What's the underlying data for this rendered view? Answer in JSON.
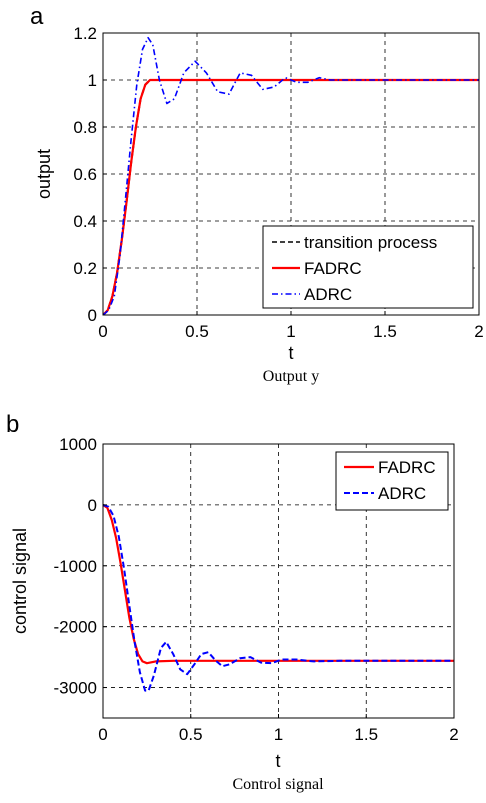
{
  "chart_data": [
    {
      "panel_letter": "a",
      "type": "line",
      "xlabel": "t",
      "ylabel": "output",
      "caption": "Output y",
      "xlim": [
        0,
        2
      ],
      "ylim": [
        0,
        1.2
      ],
      "xticks": [
        0,
        0.5,
        1,
        1.5,
        2
      ],
      "xtick_labels": [
        "0",
        "0.5",
        "1",
        "1.5",
        "2"
      ],
      "yticks": [
        0,
        0.2,
        0.4,
        0.6,
        0.8,
        1,
        1.2
      ],
      "ytick_labels": [
        "0",
        "0.2",
        "0.4",
        "0.6",
        "0.8",
        "1",
        "1.2"
      ],
      "grid": true,
      "legend_position": "bottom-right",
      "series": [
        {
          "name": "transition process",
          "color": "#000000",
          "style": "dashed",
          "x": [
            0,
            0.025,
            0.05,
            0.075,
            0.1,
            0.125,
            0.15,
            0.175,
            0.2,
            0.225,
            0.25,
            0.275,
            0.3,
            0.4,
            0.6,
            0.8,
            1.0,
            1.2,
            1.4,
            1.6,
            1.8,
            2.0
          ],
          "y": [
            0,
            0.02,
            0.08,
            0.18,
            0.32,
            0.48,
            0.65,
            0.8,
            0.92,
            0.98,
            1.0,
            1.0,
            1.0,
            1.0,
            1.0,
            1.0,
            1.0,
            1.0,
            1.0,
            1.0,
            1.0,
            1.0
          ]
        },
        {
          "name": "FADRC",
          "color": "#ff0000",
          "style": "solid",
          "x": [
            0,
            0.025,
            0.05,
            0.075,
            0.1,
            0.125,
            0.15,
            0.175,
            0.2,
            0.225,
            0.25,
            0.275,
            0.3,
            0.4,
            0.6,
            0.8,
            1.0,
            1.2,
            1.4,
            1.6,
            1.8,
            2.0
          ],
          "y": [
            0,
            0.02,
            0.08,
            0.18,
            0.32,
            0.48,
            0.65,
            0.8,
            0.92,
            0.98,
            1.0,
            1.0,
            1.0,
            1.0,
            1.0,
            1.0,
            1.0,
            1.0,
            1.0,
            1.0,
            1.0,
            1.0
          ]
        },
        {
          "name": "ADRC",
          "color": "#0000ff",
          "style": "dashdot",
          "x": [
            0,
            0.03,
            0.06,
            0.09,
            0.12,
            0.15,
            0.18,
            0.21,
            0.24,
            0.265,
            0.3,
            0.34,
            0.38,
            0.43,
            0.49,
            0.55,
            0.61,
            0.67,
            0.73,
            0.79,
            0.85,
            0.91,
            0.97,
            1.03,
            1.09,
            1.15,
            1.21,
            1.27,
            1.35,
            1.45,
            1.55,
            1.7,
            1.85,
            2.0
          ],
          "y": [
            0,
            0.02,
            0.08,
            0.25,
            0.5,
            0.75,
            0.98,
            1.13,
            1.18,
            1.15,
            1.0,
            0.9,
            0.92,
            1.03,
            1.08,
            1.03,
            0.95,
            0.94,
            1.03,
            1.02,
            0.96,
            0.97,
            1.01,
            0.99,
            0.99,
            1.01,
            1.0,
            1.0,
            1.0,
            1.0,
            1.0,
            1.0,
            1.0,
            1.0
          ]
        }
      ]
    },
    {
      "panel_letter": "b",
      "type": "line",
      "xlabel": "t",
      "ylabel": "control signal",
      "caption": "Control signal",
      "xlim": [
        0,
        2
      ],
      "ylim": [
        -3500,
        1000
      ],
      "xticks": [
        0,
        0.5,
        1,
        1.5,
        2
      ],
      "xtick_labels": [
        "0",
        "0.5",
        "1",
        "1.5",
        "2"
      ],
      "yticks": [
        1000,
        0,
        -1000,
        -2000,
        -3000
      ],
      "ytick_labels": [
        "1000",
        "0",
        "-1000",
        "-2000",
        "-3000"
      ],
      "grid": true,
      "legend_position": "top-right",
      "series": [
        {
          "name": "FADRC",
          "color": "#ff0000",
          "style": "solid",
          "x": [
            0,
            0.025,
            0.05,
            0.075,
            0.1,
            0.125,
            0.15,
            0.175,
            0.2,
            0.225,
            0.25,
            0.3,
            0.4,
            0.6,
            1.0,
            1.5,
            2.0
          ],
          "y": [
            0,
            -50,
            -250,
            -550,
            -950,
            -1400,
            -1850,
            -2200,
            -2450,
            -2570,
            -2600,
            -2570,
            -2560,
            -2560,
            -2560,
            -2560,
            -2560
          ]
        },
        {
          "name": "ADRC",
          "color": "#0000ff",
          "style": "dashed",
          "x": [
            0,
            0.03,
            0.06,
            0.09,
            0.12,
            0.15,
            0.18,
            0.21,
            0.24,
            0.26,
            0.29,
            0.33,
            0.36,
            0.4,
            0.44,
            0.48,
            0.52,
            0.56,
            0.6,
            0.64,
            0.68,
            0.72,
            0.78,
            0.84,
            0.9,
            0.96,
            1.02,
            1.1,
            1.2,
            1.35,
            1.5,
            1.7,
            2.0
          ],
          "y": [
            0,
            -30,
            -180,
            -520,
            -1050,
            -1650,
            -2250,
            -2750,
            -3050,
            -3050,
            -2800,
            -2350,
            -2250,
            -2450,
            -2700,
            -2780,
            -2620,
            -2450,
            -2420,
            -2550,
            -2650,
            -2620,
            -2520,
            -2500,
            -2590,
            -2600,
            -2540,
            -2540,
            -2570,
            -2560,
            -2560,
            -2560,
            -2560
          ]
        }
      ]
    }
  ]
}
